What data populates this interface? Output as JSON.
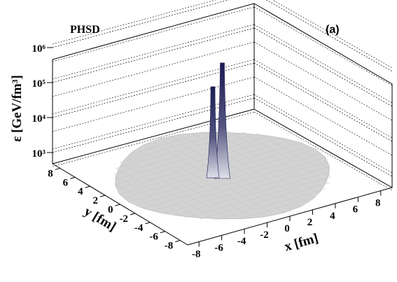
{
  "chart_data": {
    "type": "surface3d",
    "label_left": "PHSD",
    "label_right": "(a)",
    "zlabel": "ε [GeV/fm³]",
    "xlabel": "x [fm]",
    "ylabel": "y [fm]",
    "z_scale": "log",
    "z_tick_labels": [
      "10³",
      "10⁴",
      "10⁵",
      "10⁶"
    ],
    "x_ticks": [
      "-8",
      "-6",
      "-4",
      "-2",
      "0",
      "2",
      "4",
      "6",
      "8"
    ],
    "y_ticks": [
      "8",
      "6",
      "4",
      "2",
      "0",
      "-2",
      "-4",
      "-6",
      "-8"
    ],
    "xlim": [
      -9,
      9
    ],
    "ylim": [
      -9,
      9
    ],
    "disk_radius_fm": 8,
    "peak": {
      "x": 0,
      "y": 0,
      "value": 200000
    },
    "secondary_peak": {
      "x": -0.5,
      "y": 0.5,
      "value": 40000
    },
    "colors": {
      "surface": "#d3d3d3",
      "peak": "#1b1b55",
      "grid": "#000000"
    }
  }
}
